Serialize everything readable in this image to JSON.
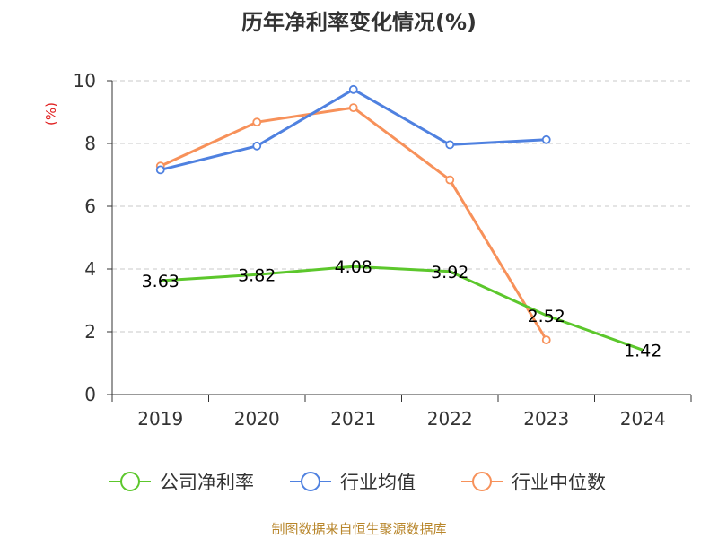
{
  "chart_data": {
    "type": "line",
    "title": "历年净利率变化情况(%)",
    "ylabel": "(%)",
    "xlabel": "",
    "categories": [
      "2019",
      "2020",
      "2021",
      "2022",
      "2023",
      "2024"
    ],
    "ylim": [
      0,
      10
    ],
    "yticks": [
      0,
      2,
      4,
      6,
      8,
      10
    ],
    "grid": true,
    "legend_position": "bottom",
    "series": [
      {
        "name": "公司净利率",
        "color": "#5cc72c",
        "values": [
          3.63,
          3.82,
          4.08,
          3.92,
          2.52,
          1.42
        ],
        "data_labels": [
          "3.63",
          "3.82",
          "4.08",
          "3.92",
          "2.52",
          "1.42"
        ]
      },
      {
        "name": "行业均值",
        "color": "#4f81e0",
        "values": [
          7.16,
          7.92,
          9.72,
          7.96,
          8.12,
          null
        ]
      },
      {
        "name": "行业中位数",
        "color": "#f7915a",
        "values": [
          7.28,
          8.68,
          9.14,
          6.84,
          1.74,
          null
        ]
      }
    ]
  },
  "source": "制图数据来自恒生聚源数据库"
}
